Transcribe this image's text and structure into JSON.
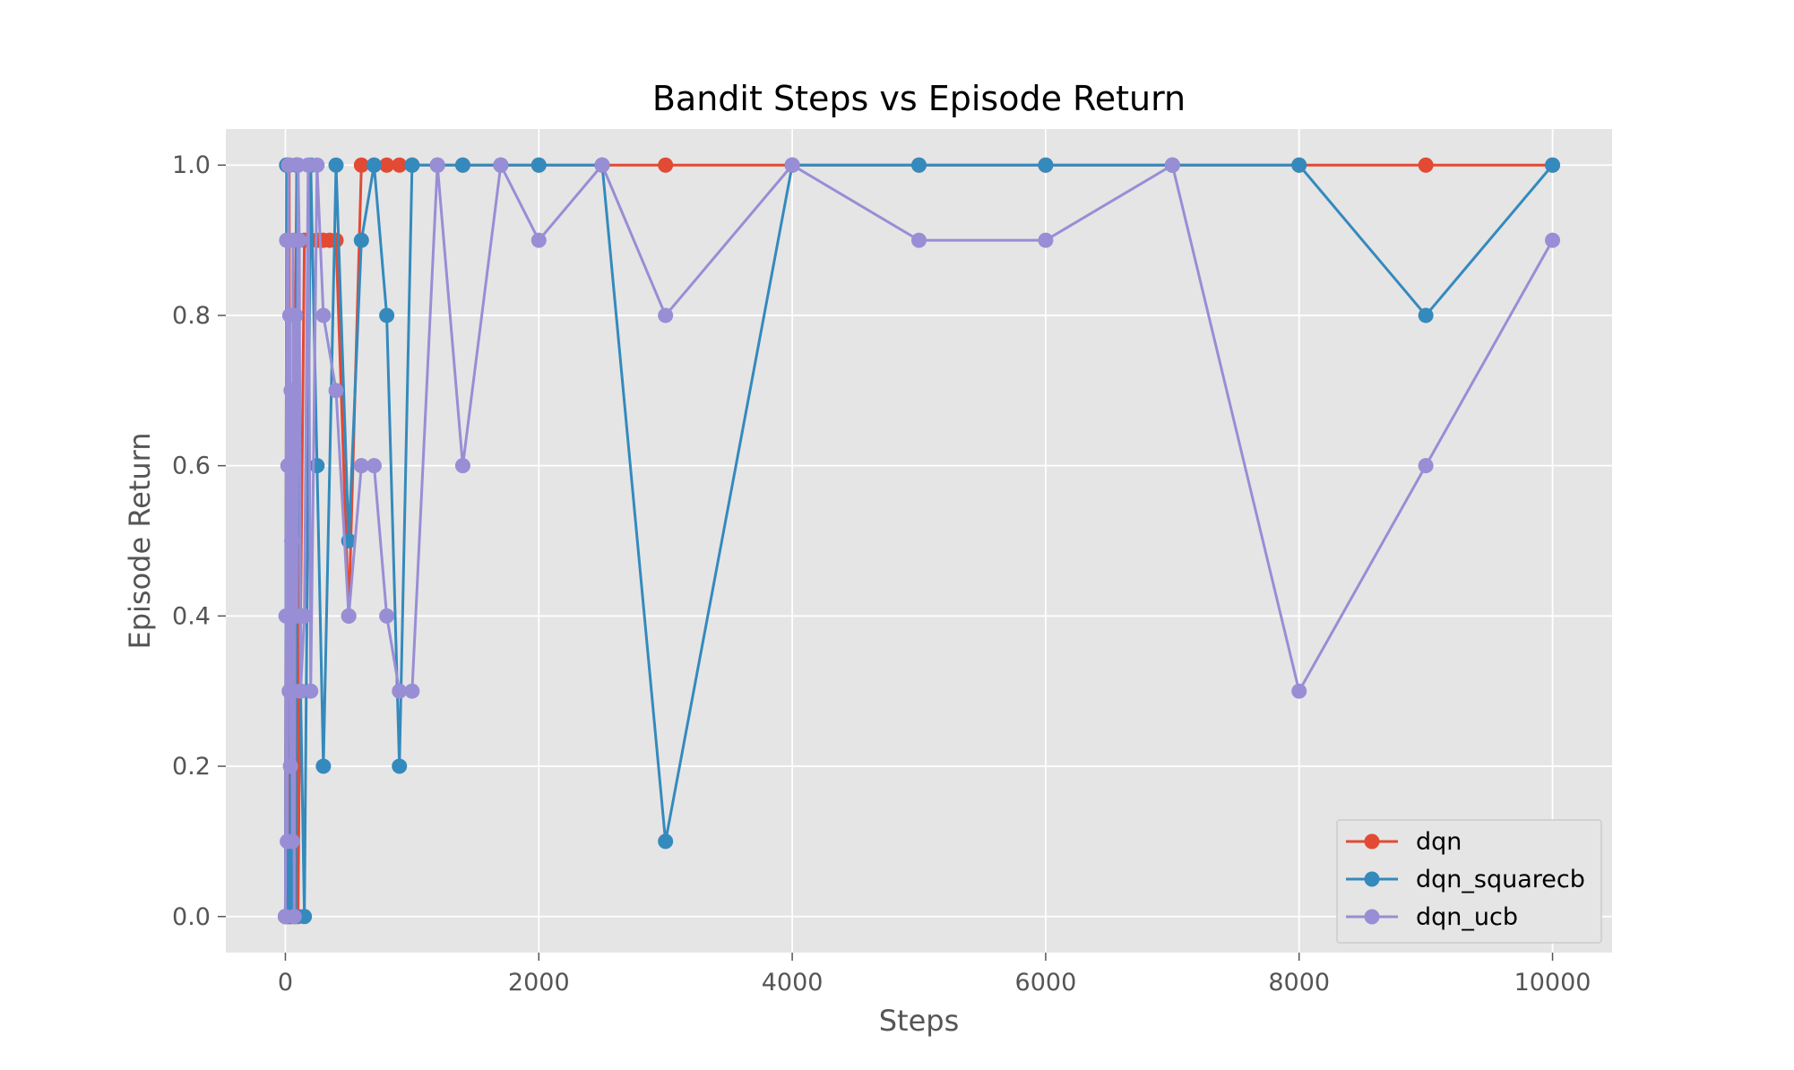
{
  "chart_data": {
    "type": "line",
    "title": "Bandit Steps vs Episode Return",
    "xlabel": "Steps",
    "ylabel": "Episode Return",
    "xlim": [
      -470,
      10470
    ],
    "ylim": [
      -0.048,
      1.048
    ],
    "xticks": [
      0,
      2000,
      4000,
      6000,
      8000,
      10000
    ],
    "yticks": [
      0.0,
      0.2,
      0.4,
      0.6,
      0.8,
      1.0
    ],
    "xtick_labels": [
      "0",
      "2000",
      "4000",
      "6000",
      "8000",
      "10000"
    ],
    "ytick_labels": [
      "0.0",
      "0.2",
      "0.4",
      "0.6",
      "0.8",
      "1.0"
    ],
    "grid": true,
    "legend_position": "lower-right",
    "markers": "circle",
    "series": [
      {
        "name": "dqn",
        "color": "#E24A33",
        "points": [
          [
            0,
            0.0
          ],
          [
            10,
            1.0
          ],
          [
            20,
            0.0
          ],
          [
            30,
            1.0
          ],
          [
            40,
            0.0
          ],
          [
            50,
            0.1
          ],
          [
            60,
            0.4
          ],
          [
            70,
            0.0
          ],
          [
            80,
            0.8
          ],
          [
            90,
            1.0
          ],
          [
            100,
            0.0
          ],
          [
            120,
            0.4
          ],
          [
            150,
            0.9
          ],
          [
            200,
            0.9
          ],
          [
            250,
            0.9
          ],
          [
            300,
            0.9
          ],
          [
            350,
            0.9
          ],
          [
            400,
            0.9
          ],
          [
            500,
            0.4
          ],
          [
            600,
            1.0
          ],
          [
            700,
            1.0
          ],
          [
            800,
            1.0
          ],
          [
            900,
            1.0
          ],
          [
            1000,
            1.0
          ],
          [
            1200,
            1.0
          ],
          [
            1400,
            1.0
          ],
          [
            1700,
            1.0
          ],
          [
            2000,
            1.0
          ],
          [
            2500,
            1.0
          ],
          [
            3000,
            1.0
          ],
          [
            4000,
            1.0
          ],
          [
            5000,
            1.0
          ],
          [
            6000,
            1.0
          ],
          [
            7000,
            1.0
          ],
          [
            8000,
            1.0
          ],
          [
            9000,
            1.0
          ],
          [
            10000,
            1.0
          ]
        ]
      },
      {
        "name": "dqn_squarecb",
        "color": "#348ABD",
        "points": [
          [
            0,
            0.0
          ],
          [
            10,
            1.0
          ],
          [
            20,
            0.0
          ],
          [
            30,
            0.1
          ],
          [
            40,
            0.0
          ],
          [
            50,
            0.4
          ],
          [
            60,
            0.0
          ],
          [
            70,
            0.8
          ],
          [
            80,
            0.0
          ],
          [
            90,
            1.0
          ],
          [
            100,
            1.0
          ],
          [
            120,
            0.3
          ],
          [
            150,
            0.0
          ],
          [
            200,
            1.0
          ],
          [
            250,
            0.6
          ],
          [
            300,
            0.2
          ],
          [
            400,
            1.0
          ],
          [
            500,
            0.5
          ],
          [
            600,
            0.9
          ],
          [
            700,
            1.0
          ],
          [
            800,
            0.8
          ],
          [
            900,
            0.2
          ],
          [
            1000,
            1.0
          ],
          [
            1200,
            1.0
          ],
          [
            1400,
            1.0
          ],
          [
            1700,
            1.0
          ],
          [
            2000,
            1.0
          ],
          [
            2500,
            1.0
          ],
          [
            3000,
            0.1
          ],
          [
            4000,
            1.0
          ],
          [
            5000,
            1.0
          ],
          [
            6000,
            1.0
          ],
          [
            7000,
            1.0
          ],
          [
            8000,
            1.0
          ],
          [
            9000,
            0.8
          ],
          [
            10000,
            1.0
          ]
        ]
      },
      {
        "name": "dqn_ucb",
        "color": "#988ED5",
        "points": [
          [
            0,
            0.0
          ],
          [
            5,
            0.4
          ],
          [
            10,
            0.9
          ],
          [
            15,
            0.1
          ],
          [
            20,
            0.6
          ],
          [
            25,
            1.0
          ],
          [
            30,
            0.3
          ],
          [
            35,
            0.8
          ],
          [
            40,
            0.2
          ],
          [
            45,
            0.7
          ],
          [
            50,
            0.5
          ],
          [
            55,
            0.1
          ],
          [
            60,
            0.9
          ],
          [
            65,
            0.3
          ],
          [
            70,
            0.0
          ],
          [
            80,
            0.8
          ],
          [
            90,
            0.4
          ],
          [
            100,
            1.0
          ],
          [
            110,
            0.9
          ],
          [
            120,
            0.3
          ],
          [
            150,
            0.4
          ],
          [
            180,
            1.0
          ],
          [
            200,
            0.3
          ],
          [
            250,
            1.0
          ],
          [
            300,
            0.8
          ],
          [
            400,
            0.7
          ],
          [
            500,
            0.4
          ],
          [
            600,
            0.6
          ],
          [
            700,
            0.6
          ],
          [
            800,
            0.4
          ],
          [
            900,
            0.3
          ],
          [
            1000,
            0.3
          ],
          [
            1200,
            1.0
          ],
          [
            1400,
            0.6
          ],
          [
            1700,
            1.0
          ],
          [
            2000,
            0.9
          ],
          [
            2500,
            1.0
          ],
          [
            3000,
            0.8
          ],
          [
            4000,
            1.0
          ],
          [
            5000,
            0.9
          ],
          [
            6000,
            0.9
          ],
          [
            7000,
            1.0
          ],
          [
            8000,
            0.3
          ],
          [
            9000,
            0.6
          ],
          [
            10000,
            0.9
          ]
        ]
      }
    ]
  }
}
